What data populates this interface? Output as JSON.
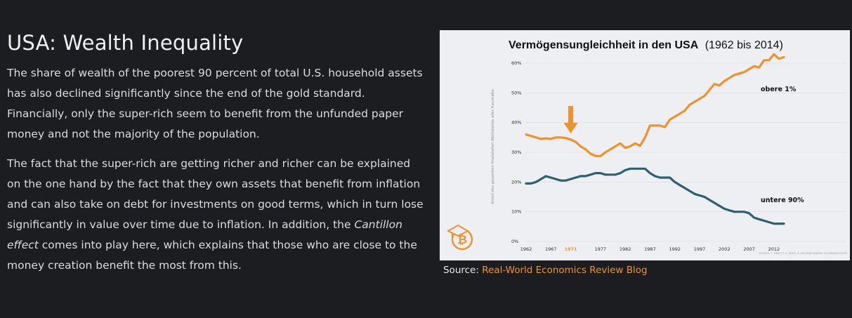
{
  "article": {
    "title": "USA: Wealth Inequality",
    "para1": "The share of wealth of the poorest 90 percent of total U.S. household assets has also declined significantly since the end of the gold standard. Financially, only the super-rich seem to benefit from the unfunded paper money and not the majority of the population.",
    "para2_before": "The fact that the super-rich are getting richer and richer can be explained on the one hand by the fact that they own assets that benefit from inflation and can also take on debt for investments on good terms, which in turn lose significantly in value over time due to inflation. In addition, the ",
    "para2_em": "Cantillon effect",
    "para2_after": " comes into play here, which explains that those who are close to the money creation benefit the most from this."
  },
  "source": {
    "prefix": "Source: ",
    "link_text": "Real-World Economics Review Blog"
  },
  "colors": {
    "top1": "#f0922b",
    "bottom90": "#2c6270",
    "highlight": "#f0922b"
  },
  "chart_data": {
    "type": "line",
    "title_bold": "Vermögensungleichheit in den USA",
    "title_light": "(1962 bis 2014)",
    "ylabel": "Anteil des gesamten finanziellen Wohlstands aller Haushalte",
    "source_note": "SOURCE: T. PIKETTY, E. SAEZ, G. ZUCMAN  GABRIEL ZUCMAN/GOOGLE",
    "ylim": [
      0,
      60
    ],
    "xlim": [
      1962,
      2014
    ],
    "yticks": [
      0,
      10,
      20,
      30,
      40,
      50,
      60
    ],
    "ytick_labels": [
      "0%",
      "10%",
      "20%",
      "30%",
      "40%",
      "50%",
      "60%"
    ],
    "xticks": [
      1962,
      1967,
      1971,
      1977,
      1982,
      1987,
      1992,
      1997,
      2002,
      2007,
      2012
    ],
    "xtick_labels": [
      "1962",
      "1967",
      "1971",
      "1977",
      "1982",
      "1987",
      "1992",
      "1997",
      "2002",
      "2007",
      "2012"
    ],
    "highlight_year": 1971,
    "annotation": "arrow at 1971",
    "grid": true,
    "series": [
      {
        "name": "obere 1%",
        "x": [
          1962,
          1963,
          1964,
          1965,
          1966,
          1967,
          1968,
          1969,
          1970,
          1971,
          1972,
          1973,
          1974,
          1975,
          1976,
          1977,
          1978,
          1979,
          1980,
          1981,
          1982,
          1983,
          1984,
          1985,
          1986,
          1987,
          1988,
          1989,
          1990,
          1991,
          1992,
          1993,
          1994,
          1995,
          1996,
          1997,
          1998,
          1999,
          2000,
          2001,
          2002,
          2003,
          2004,
          2005,
          2006,
          2007,
          2008,
          2009,
          2010,
          2011,
          2012,
          2013,
          2014
        ],
        "values": [
          36,
          35.5,
          35,
          34.5,
          34.7,
          34.5,
          35,
          35,
          34.8,
          34.3,
          33.5,
          32,
          31,
          29.5,
          28.8,
          28.7,
          30,
          31,
          32,
          33,
          31.5,
          32,
          33,
          32.2,
          35,
          39,
          39,
          39,
          38.5,
          41,
          42,
          43,
          44,
          46,
          47,
          48,
          49,
          51,
          53,
          52.5,
          54,
          55,
          56,
          56.5,
          57,
          58,
          59,
          58.5,
          61,
          61,
          63,
          61.5,
          62
        ]
      },
      {
        "name": "untere 90%",
        "x": [
          1962,
          1963,
          1964,
          1965,
          1966,
          1967,
          1968,
          1969,
          1970,
          1971,
          1972,
          1973,
          1974,
          1975,
          1976,
          1977,
          1978,
          1979,
          1980,
          1981,
          1982,
          1983,
          1984,
          1985,
          1986,
          1987,
          1988,
          1989,
          1990,
          1991,
          1992,
          1993,
          1994,
          1995,
          1996,
          1997,
          1998,
          1999,
          2000,
          2001,
          2002,
          2003,
          2004,
          2005,
          2006,
          2007,
          2008,
          2009,
          2010,
          2011,
          2012,
          2013,
          2014
        ],
        "values": [
          19.5,
          19.5,
          20,
          21,
          22,
          21.5,
          21,
          20.5,
          20.5,
          21,
          21.5,
          22,
          22,
          22.5,
          23,
          23,
          22.5,
          22.5,
          22.5,
          23,
          24,
          24.5,
          24.5,
          24.5,
          24.5,
          23,
          22,
          21.5,
          21.5,
          21.5,
          20,
          19,
          18,
          17,
          16,
          15.5,
          15,
          14,
          13,
          12,
          11,
          10.5,
          10,
          10,
          10,
          9.5,
          8,
          7.5,
          7,
          6.5,
          6,
          6,
          6
        ]
      }
    ]
  }
}
